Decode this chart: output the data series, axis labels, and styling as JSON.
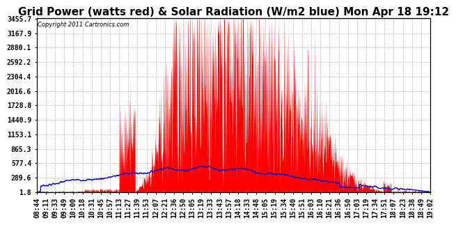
{
  "title": "Grid Power (watts red) & Solar Radiation (W/m2 blue) Mon Apr 18 19:12",
  "copyright": "Copyright 2011 Cartronics.com",
  "background_color": "#ffffff",
  "plot_bg_color": "#ffffff",
  "grid_color": "#aaaaaa",
  "yticks": [
    1.8,
    289.6,
    577.4,
    865.3,
    1153.1,
    1440.9,
    1728.8,
    2016.6,
    2304.4,
    2592.2,
    2880.1,
    3167.9,
    3455.7
  ],
  "ymin": 0,
  "ymax": 3455.7,
  "red_color": "#ff0000",
  "blue_color": "#0000cc",
  "title_fontsize": 11,
  "tick_fontsize": 7,
  "xtick_labels": [
    "08:44",
    "09:11",
    "09:33",
    "09:49",
    "10:00",
    "10:18",
    "10:31",
    "10:45",
    "10:57",
    "11:13",
    "11:27",
    "11:39",
    "11:53",
    "12:07",
    "12:21",
    "12:36",
    "12:50",
    "13:05",
    "13:19",
    "13:33",
    "13:43",
    "13:57",
    "14:18",
    "14:33",
    "14:48",
    "15:05",
    "15:19",
    "15:34",
    "15:40",
    "15:51",
    "16:03",
    "16:10",
    "16:21",
    "16:36",
    "16:50",
    "17:03",
    "17:19",
    "17:34",
    "17:51",
    "18:07",
    "18:23",
    "18:38",
    "18:49",
    "19:02"
  ]
}
